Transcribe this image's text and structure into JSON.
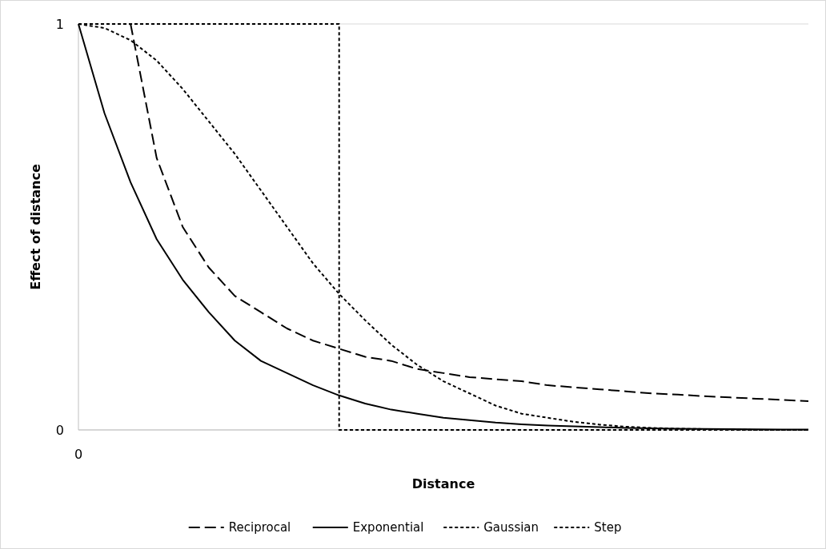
{
  "chart_data": {
    "type": "line",
    "xlabel": "Distance",
    "ylabel": "Effect of distance",
    "categories": [
      "0",
      null,
      null,
      null,
      null,
      null,
      null,
      null,
      null,
      null,
      null,
      null,
      null,
      null,
      null,
      null,
      null,
      null,
      null,
      null,
      null,
      null,
      null,
      null,
      null,
      null,
      null,
      null,
      null
    ],
    "ylim": [
      0,
      1
    ],
    "yticks": [
      0,
      1
    ],
    "grid": "y",
    "legend": "bottom",
    "series": [
      {
        "name": "Reciprocal",
        "color": "#000000",
        "line_style": "dashed",
        "values": [
          null,
          null,
          1,
          0.67,
          0.5,
          0.4,
          0.33,
          0.29,
          0.25,
          0.22,
          0.2,
          0.18,
          0.17,
          0.15,
          0.14,
          0.13,
          0.125,
          0.12,
          0.11,
          0.105,
          0.1,
          0.095,
          0.09,
          0.087,
          0.083,
          0.08,
          0.077,
          0.074,
          0.071
        ]
      },
      {
        "name": "Exponential",
        "color": "#000000",
        "line_style": "solid",
        "values": [
          1,
          0.78,
          0.61,
          0.47,
          0.37,
          0.29,
          0.22,
          0.17,
          0.14,
          0.11,
          0.085,
          0.065,
          0.05,
          0.04,
          0.03,
          0.024,
          0.018,
          0.014,
          0.011,
          0.009,
          0.007,
          0.005,
          0.004,
          0.003,
          0.0025,
          0.002,
          0.0015,
          0.001,
          0.001
        ]
      },
      {
        "name": "Gaussian",
        "color": "#000000",
        "line_style": "dotted",
        "values": [
          1,
          0.99,
          0.96,
          0.91,
          0.84,
          0.76,
          0.68,
          0.59,
          0.5,
          0.41,
          0.335,
          0.27,
          0.21,
          0.16,
          0.12,
          0.09,
          0.06,
          0.04,
          0.03,
          0.02,
          0.013,
          0.008,
          0.005,
          0.003,
          0.002,
          0.001,
          0,
          0,
          0
        ]
      },
      {
        "name": "Step",
        "type": "step",
        "color": "#000000",
        "line_style": "dotted",
        "values": [
          1,
          1,
          1,
          1,
          1,
          1,
          1,
          1,
          1,
          1,
          0,
          0,
          0,
          0,
          0,
          0,
          0,
          0,
          0,
          0,
          0,
          0,
          0,
          0,
          0,
          0,
          0,
          0,
          0
        ]
      }
    ]
  }
}
